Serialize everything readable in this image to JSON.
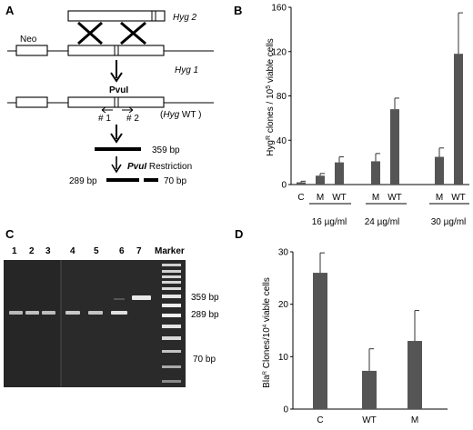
{
  "figure": {
    "panels": {
      "A": {
        "label": "A",
        "neo": "Neo",
        "hyg2": "Hyg 2",
        "hyg1": "Hyg 1",
        "pvui": "PvuI",
        "primer1": "# 1",
        "primer2": "# 2",
        "hyg_wt_open": "(",
        "hyg_wt_ital": "Hyg",
        "hyg_wt_rest": " WT )",
        "band_359": "359 bp",
        "band_289": "289 bp",
        "band_70": "70 bp",
        "restriction_enzyme": "PvuI",
        "restriction_text": " Restriction"
      },
      "B": {
        "label": "B"
      },
      "C": {
        "label": "C",
        "lanes": [
          "1",
          "2",
          "3",
          "4",
          "5",
          "6",
          "7"
        ],
        "marker_label": "Marker",
        "band_labels": [
          "359 bp",
          "289 bp",
          "70 bp"
        ]
      },
      "D": {
        "label": "D"
      }
    }
  },
  "chart_data": [
    {
      "panel": "B",
      "type": "bar",
      "ylabel_main": "Hyg",
      "ylabel_sup": "R",
      "ylabel_rest": " clones / 10",
      "ylabel_sup2": "5",
      "ylabel_end": " viable cells",
      "ylim": [
        0,
        160
      ],
      "yticks": [
        "0",
        "40",
        "80",
        "120",
        "160"
      ],
      "categories": [
        "C",
        "M",
        "WT",
        "M",
        "WT",
        "M",
        "WT"
      ],
      "values": [
        2,
        8,
        20,
        21,
        68,
        25,
        118
      ],
      "errors": [
        1,
        2,
        5,
        7,
        10,
        8,
        37
      ],
      "groups": [
        {
          "label": "16 µg/ml"
        },
        {
          "label": "24 µg/ml"
        },
        {
          "label": "30 µg/ml"
        }
      ]
    },
    {
      "panel": "D",
      "type": "bar",
      "ylabel_main": "Bla",
      "ylabel_sup": "R",
      "ylabel_rest": " Clones/10",
      "ylabel_sup2": "4",
      "ylabel_end": " viable cells",
      "ylim": [
        0,
        30
      ],
      "yticks": [
        "0",
        "10",
        "20",
        "30"
      ],
      "categories": [
        "C",
        "WT",
        "M"
      ],
      "values": [
        26,
        7.3,
        13
      ],
      "errors": [
        3.8,
        4.2,
        5.8
      ]
    }
  ]
}
